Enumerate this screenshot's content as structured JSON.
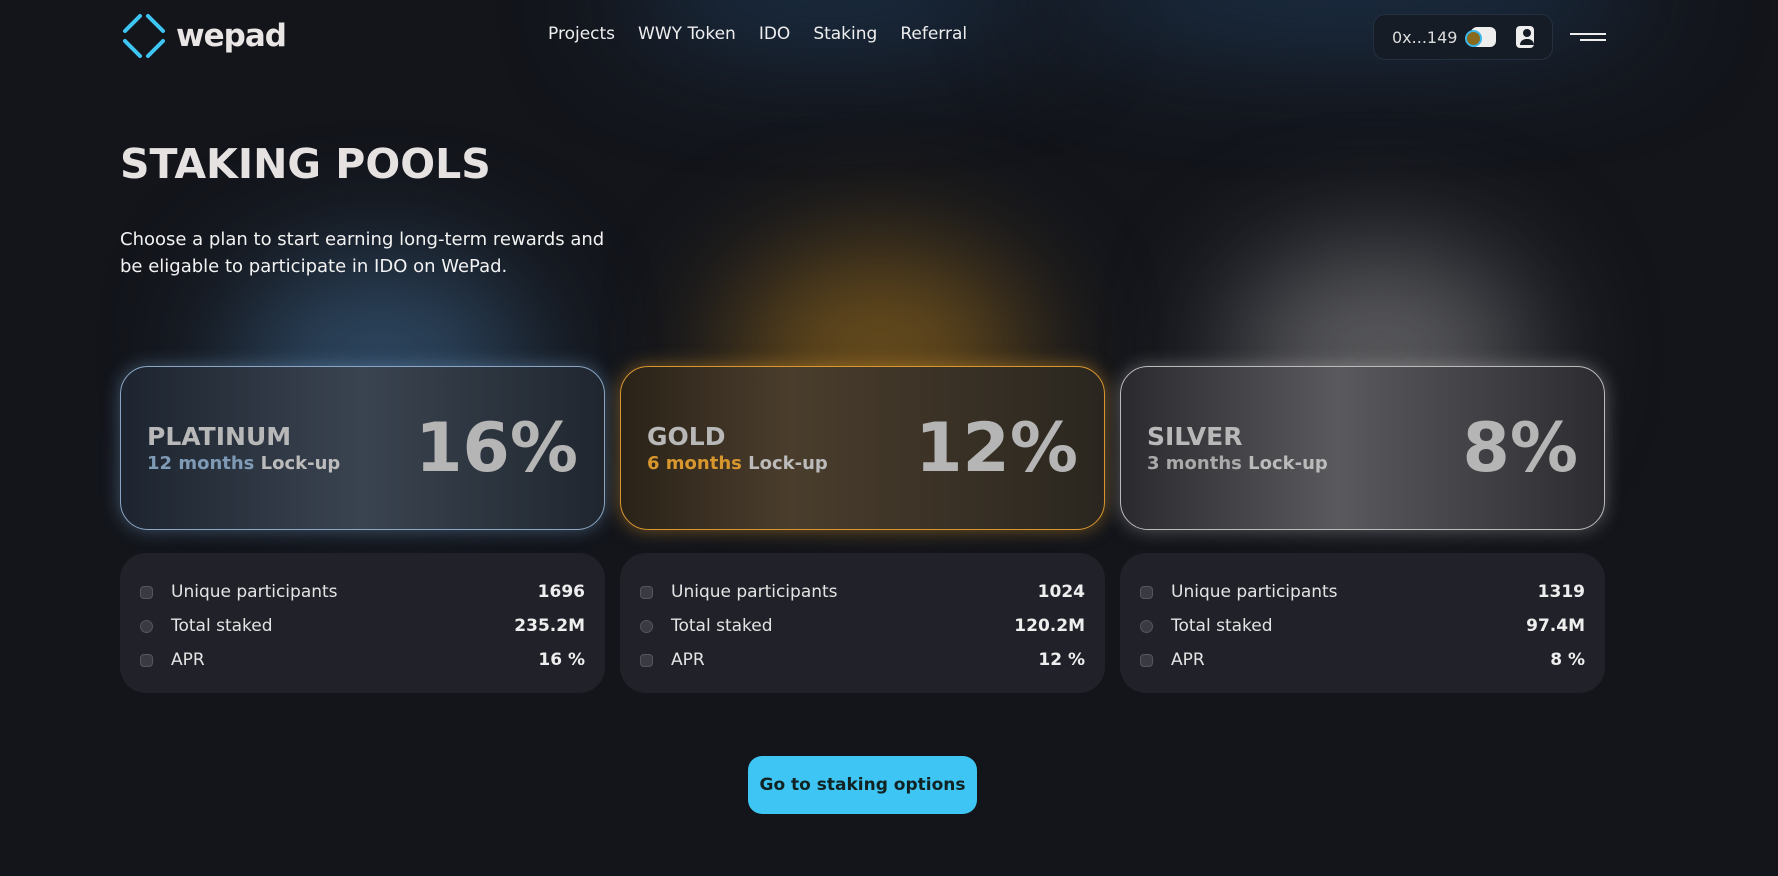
{
  "header": {
    "logo": "wepad",
    "nav": [
      "Projects",
      "WWY Token",
      "IDO",
      "Staking",
      "Referral"
    ],
    "address": "0x...149"
  },
  "page": {
    "title": "STAKING POOLS",
    "description": "Choose a plan to start earning long-term rewards and be eligable to participate in IDO on WePad."
  },
  "pools": [
    {
      "name": "PLATINUM",
      "months": "12 months",
      "lockup": "Lock-up",
      "percent": "16%",
      "accent": "#7f9ab5",
      "stats": [
        {
          "label": "Unique participants",
          "value": "1696"
        },
        {
          "label": "Total staked",
          "value": "235.2M"
        },
        {
          "label": "APR",
          "value": "16 %"
        }
      ]
    },
    {
      "name": "GOLD",
      "months": "6 months",
      "lockup": "Lock-up",
      "percent": "12%",
      "accent": "#d8962e",
      "stats": [
        {
          "label": "Unique participants",
          "value": "1024"
        },
        {
          "label": "Total staked",
          "value": "120.2M"
        },
        {
          "label": "APR",
          "value": "12 %"
        }
      ]
    },
    {
      "name": "SILVER",
      "months": "3 months",
      "lockup": "Lock-up",
      "percent": "8%",
      "accent": "#c8c8c8",
      "stats": [
        {
          "label": "Unique participants",
          "value": "1319"
        },
        {
          "label": "Total staked",
          "value": "97.4M"
        },
        {
          "label": "APR",
          "value": "8 %"
        }
      ]
    }
  ],
  "cta": "Go to staking options"
}
